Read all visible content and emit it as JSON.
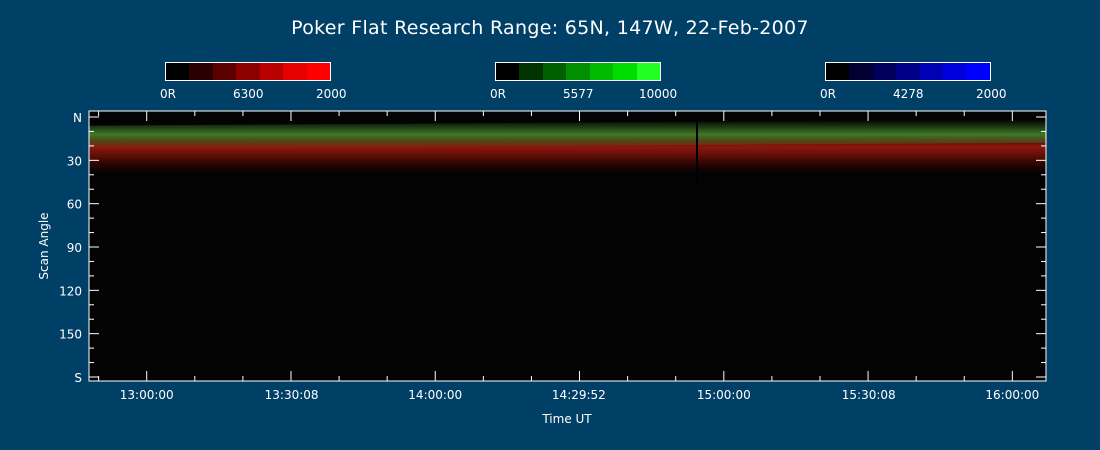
{
  "title": "Poker Flat Research Range: 65N, 147W, 22-Feb-2007",
  "colorbars": [
    {
      "name": "red",
      "labels": [
        "0R",
        "6300",
        "2000"
      ],
      "colors": [
        "#000000",
        "#2a0000",
        "#5a0000",
        "#8c0000",
        "#bb0000",
        "#e60000",
        "#ff0000"
      ]
    },
    {
      "name": "green",
      "labels": [
        "0R",
        "5577",
        "10000"
      ],
      "colors": [
        "#000000",
        "#003300",
        "#006000",
        "#008f00",
        "#00bb00",
        "#00dd00",
        "#22ff22"
      ]
    },
    {
      "name": "blue",
      "labels": [
        "0R",
        "4278",
        "2000"
      ],
      "colors": [
        "#000000",
        "#000033",
        "#00005c",
        "#000088",
        "#0000b4",
        "#0000dd",
        "#0000ff"
      ]
    }
  ],
  "chart_data": {
    "type": "heatmap",
    "xlabel": "Time UT",
    "ylabel": "Scan Angle",
    "xticks": [
      "13:00:00",
      "13:30:08",
      "14:00:00",
      "14:29:52",
      "15:00:00",
      "15:30:08",
      "16:00:00"
    ],
    "yticks": [
      "N",
      "30",
      "60",
      "90",
      "120",
      "150",
      "S"
    ],
    "ylim": [
      0,
      180
    ],
    "xlim": [
      "12:48:00",
      "16:07:00"
    ],
    "emission_bands": [
      {
        "name": "6300",
        "color": "#c81e0a",
        "scan_angle_center": 25,
        "scan_angle_width": 14
      },
      {
        "name": "5577",
        "color": "#46a028",
        "scan_angle_center": 14,
        "scan_angle_width": 8
      }
    ]
  }
}
